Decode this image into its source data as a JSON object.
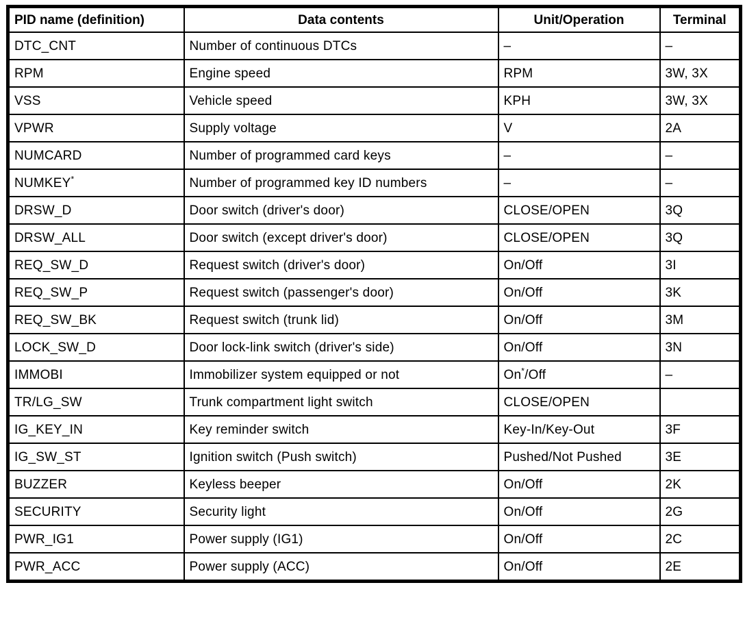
{
  "table": {
    "headers": [
      "PID name (definition)",
      "Data contents",
      "Unit/Operation",
      "Terminal"
    ],
    "rows": [
      {
        "pid": "DTC_CNT",
        "pid_sup": "",
        "data": "Number of continuous DTCs",
        "unit": "–",
        "unit_sup": "",
        "unit_post": "",
        "terminal": "–"
      },
      {
        "pid": "RPM",
        "pid_sup": "",
        "data": "Engine speed",
        "unit": "RPM",
        "unit_sup": "",
        "unit_post": "",
        "terminal": "3W, 3X"
      },
      {
        "pid": "VSS",
        "pid_sup": "",
        "data": "Vehicle speed",
        "unit": "KPH",
        "unit_sup": "",
        "unit_post": "",
        "terminal": "3W, 3X"
      },
      {
        "pid": "VPWR",
        "pid_sup": "",
        "data": "Supply voltage",
        "unit": "V",
        "unit_sup": "",
        "unit_post": "",
        "terminal": "2A"
      },
      {
        "pid": "NUMCARD",
        "pid_sup": "",
        "data": "Number of programmed card keys",
        "unit": "–",
        "unit_sup": "",
        "unit_post": "",
        "terminal": "–"
      },
      {
        "pid": "NUMKEY",
        "pid_sup": "*",
        "data": "Number of programmed key ID numbers",
        "unit": "–",
        "unit_sup": "",
        "unit_post": "",
        "terminal": "–"
      },
      {
        "pid": "DRSW_D",
        "pid_sup": "",
        "data": "Door switch (driver's door)",
        "unit": "CLOSE/OPEN",
        "unit_sup": "",
        "unit_post": "",
        "terminal": "3Q"
      },
      {
        "pid": "DRSW_ALL",
        "pid_sup": "",
        "data": "Door switch (except driver's door)",
        "unit": "CLOSE/OPEN",
        "unit_sup": "",
        "unit_post": "",
        "terminal": "3Q"
      },
      {
        "pid": "REQ_SW_D",
        "pid_sup": "",
        "data": "Request switch (driver's door)",
        "unit": "On/Off",
        "unit_sup": "",
        "unit_post": "",
        "terminal": "3I"
      },
      {
        "pid": "REQ_SW_P",
        "pid_sup": "",
        "data": "Request switch (passenger's door)",
        "unit": "On/Off",
        "unit_sup": "",
        "unit_post": "",
        "terminal": "3K"
      },
      {
        "pid": "REQ_SW_BK",
        "pid_sup": "",
        "data": "Request switch (trunk lid)",
        "unit": "On/Off",
        "unit_sup": "",
        "unit_post": "",
        "terminal": "3M"
      },
      {
        "pid": "LOCK_SW_D",
        "pid_sup": "",
        "data": "Door lock-link switch (driver's side)",
        "unit": "On/Off",
        "unit_sup": "",
        "unit_post": "",
        "terminal": "3N"
      },
      {
        "pid": "IMMOBI",
        "pid_sup": "",
        "data": "Immobilizer system equipped or not",
        "unit": "On",
        "unit_sup": "*",
        "unit_post": "/Off",
        "terminal": "–"
      },
      {
        "pid": "TR/LG_SW",
        "pid_sup": "",
        "data": "Trunk compartment light switch",
        "unit": "CLOSE/OPEN",
        "unit_sup": "",
        "unit_post": "",
        "terminal": ""
      },
      {
        "pid": "IG_KEY_IN",
        "pid_sup": "",
        "data": "Key reminder switch",
        "unit": "Key-In/Key-Out",
        "unit_sup": "",
        "unit_post": "",
        "terminal": "3F"
      },
      {
        "pid": "IG_SW_ST",
        "pid_sup": "",
        "data": "Ignition switch (Push switch)",
        "unit": "Pushed/Not Pushed",
        "unit_sup": "",
        "unit_post": "",
        "terminal": "3E"
      },
      {
        "pid": "BUZZER",
        "pid_sup": "",
        "data": "Keyless beeper",
        "unit": "On/Off",
        "unit_sup": "",
        "unit_post": "",
        "terminal": "2K"
      },
      {
        "pid": "SECURITY",
        "pid_sup": "",
        "data": "Security light",
        "unit": "On/Off",
        "unit_sup": "",
        "unit_post": "",
        "terminal": "2G"
      },
      {
        "pid": "PWR_IG1",
        "pid_sup": "",
        "data": "Power supply (IG1)",
        "unit": "On/Off",
        "unit_sup": "",
        "unit_post": "",
        "terminal": "2C"
      },
      {
        "pid": "PWR_ACC",
        "pid_sup": "",
        "data": "Power supply (ACC)",
        "unit": "On/Off",
        "unit_sup": "",
        "unit_post": "",
        "terminal": "2E"
      }
    ],
    "colors": {
      "border": "#000000",
      "text": "#000000",
      "background": "#ffffff"
    }
  }
}
